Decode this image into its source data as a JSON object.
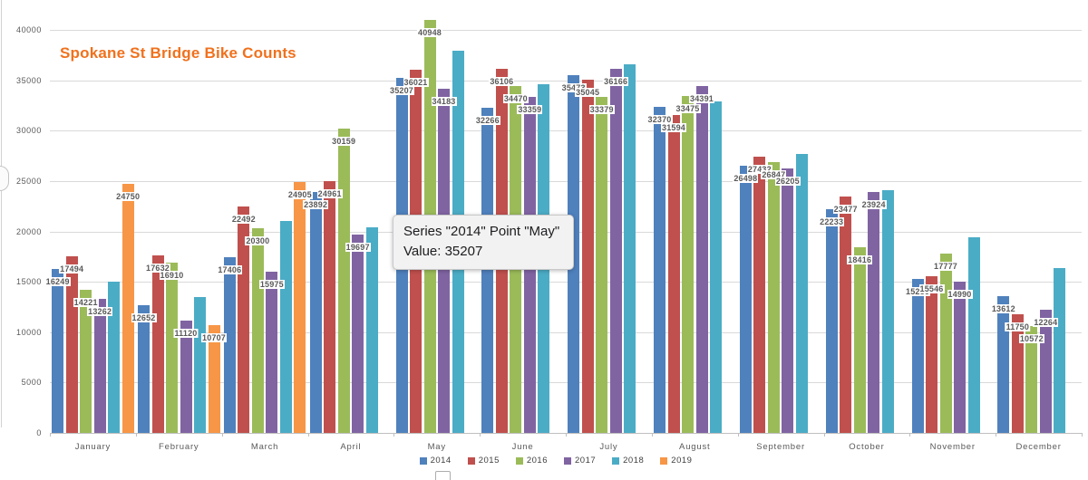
{
  "title": {
    "text": "Spokane St Bridge Bike Counts",
    "color": "#F0711D"
  },
  "tooltip": {
    "line1": "Series \"2014\" Point \"May\"",
    "line2": "Value: 35207"
  },
  "chart_data": {
    "type": "bar",
    "title": "Spokane St Bridge Bike Counts",
    "categories": [
      "January",
      "February",
      "March",
      "April",
      "May",
      "June",
      "July",
      "August",
      "September",
      "October",
      "November",
      "December"
    ],
    "series": [
      {
        "name": "2014",
        "color": "#4F81BD",
        "data_labels": true,
        "values": [
          16249,
          12652,
          17406,
          23892,
          35207,
          32266,
          35473,
          32370,
          26498,
          22233,
          15286,
          13612
        ]
      },
      {
        "name": "2015",
        "color": "#C0504D",
        "data_labels": true,
        "values": [
          17494,
          17632,
          22492,
          24961,
          36021,
          36106,
          35045,
          31594,
          27432,
          23477,
          15546,
          11750
        ]
      },
      {
        "name": "2016",
        "color": "#9BBB59",
        "data_labels": true,
        "values": [
          14221,
          16910,
          20300,
          30159,
          40948,
          34470,
          33379,
          33475,
          26847,
          18416,
          17777,
          10572
        ]
      },
      {
        "name": "2017",
        "color": "#8064A2",
        "data_labels": true,
        "values": [
          13262,
          11120,
          15975,
          19697,
          34183,
          33359,
          36166,
          34391,
          26205,
          23924,
          14990,
          12264
        ]
      },
      {
        "name": "2018",
        "color": "#4BACC6",
        "data_labels": false,
        "estimated": true,
        "values": [
          15000,
          13500,
          21000,
          20400,
          37900,
          34600,
          36600,
          32900,
          27700,
          24100,
          19400,
          16400
        ]
      },
      {
        "name": "2019",
        "color": "#F79646",
        "data_labels": true,
        "values": [
          24750,
          10707,
          24905,
          null,
          null,
          null,
          null,
          null,
          null,
          null,
          null,
          null
        ]
      }
    ],
    "y_ticks": [
      0,
      5000,
      10000,
      15000,
      20000,
      25000,
      30000,
      35000,
      40000
    ],
    "ylim": [
      0,
      40000
    ],
    "xlabel": "",
    "ylabel": "",
    "grid": true,
    "legend_position": "bottom"
  }
}
